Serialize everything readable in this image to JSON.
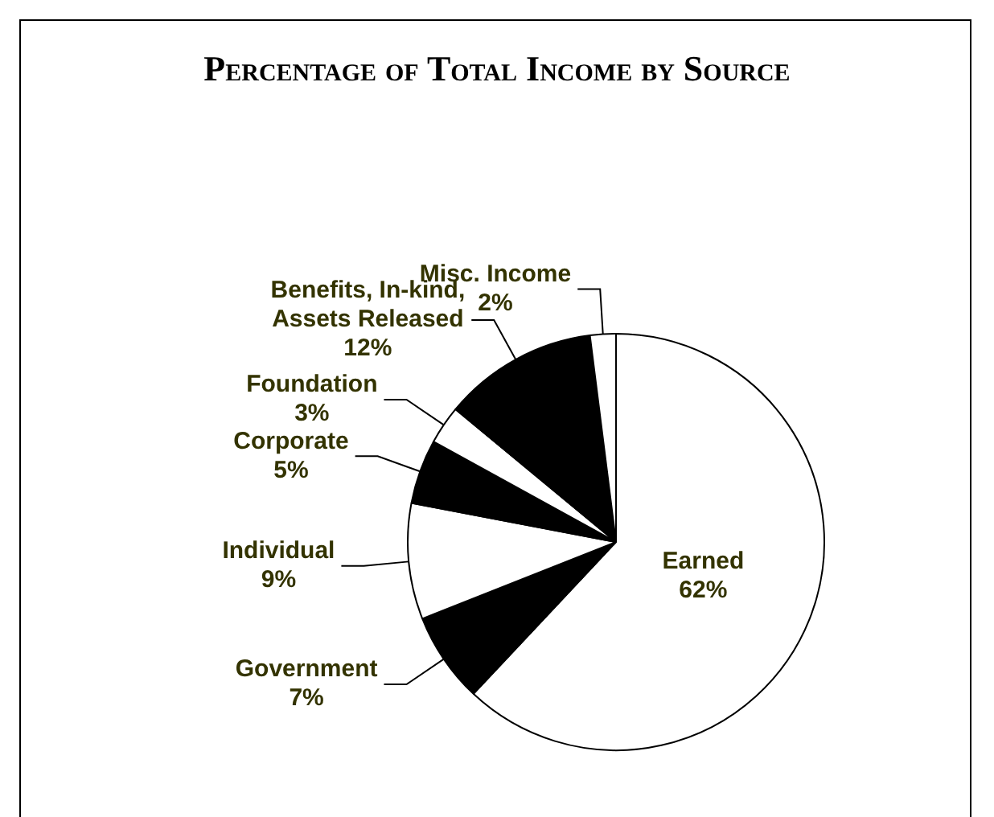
{
  "chart_data": {
    "type": "pie",
    "title": "Percentage of Total Income by Source",
    "categories": [
      "Earned",
      "Government",
      "Individual",
      "Corporate",
      "Foundation",
      "Benefits, In-kind, Assets Released",
      "Misc. Income"
    ],
    "values": [
      62,
      7,
      9,
      5,
      3,
      12,
      2
    ],
    "colors": [
      "#ffffff",
      "#000000",
      "#ffffff",
      "#000000",
      "#ffffff",
      "#000000",
      "#ffffff"
    ],
    "value_labels": [
      "62%",
      "7%",
      "9%",
      "5%",
      "3%",
      "12%",
      "2%"
    ],
    "legend": false
  }
}
